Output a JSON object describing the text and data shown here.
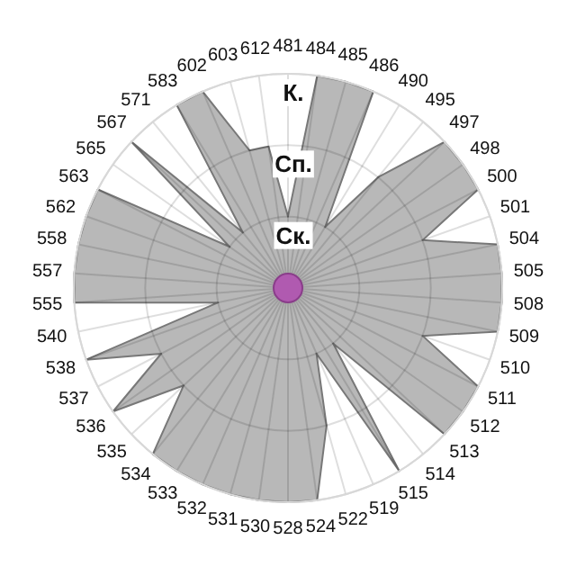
{
  "chart_data": {
    "type": "radar",
    "categories": [
      "481",
      "484",
      "485",
      "486",
      "490",
      "495",
      "497",
      "498",
      "500",
      "501",
      "504",
      "505",
      "508",
      "509",
      "510",
      "511",
      "512",
      "513",
      "514",
      "515",
      "519",
      "522",
      "524",
      "528",
      "530",
      "531",
      "532",
      "533",
      "534",
      "535",
      "536",
      "537",
      "538",
      "540",
      "555",
      "557",
      "558",
      "562",
      "563",
      "565",
      "567",
      "571",
      "583",
      "602",
      "603",
      "612"
    ],
    "series": [
      {
        "color": "#b8b8b8",
        "values": [
          1,
          3,
          3,
          3,
          1,
          2,
          3,
          3,
          3,
          2,
          3,
          3,
          3,
          3,
          2,
          3,
          3,
          3,
          1,
          3,
          1,
          2,
          3,
          3,
          3,
          3,
          3,
          3,
          3,
          2,
          3,
          2,
          3,
          1,
          3,
          3,
          3,
          3,
          3,
          1,
          3,
          1,
          3,
          3,
          2,
          2
        ]
      }
    ],
    "ylim": [
      0,
      3
    ],
    "yticks": [
      {
        "value": 1,
        "label": "Ск."
      },
      {
        "value": 2,
        "label": "Сп."
      },
      {
        "value": 3,
        "label": "К."
      }
    ],
    "grid": true
  }
}
